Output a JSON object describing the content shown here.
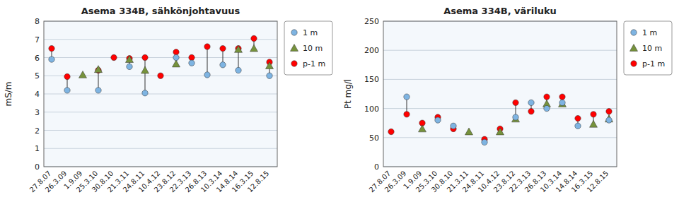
{
  "chart_data": [
    {
      "type": "scatter",
      "title": "Asema 334B, sähkönjohtavuus",
      "ylabel": "mS/m",
      "ylim": [
        0,
        8
      ],
      "yticks": [
        0,
        1,
        2,
        3,
        4,
        5,
        6,
        7,
        8
      ],
      "grid": true,
      "legend": "right",
      "categories": [
        "27.8.07",
        "26.3.09",
        "1.9.09",
        "25.3.10",
        "30.8.10",
        "21.3.11",
        "24.8.11",
        "10.4.12",
        "23.8.12",
        "22.3.13",
        "26.8.13",
        "10.3.14",
        "14.8.14",
        "16.3.15",
        "12.8.15"
      ],
      "series": [
        {
          "name": "1 m",
          "color": "#7EB4E2",
          "marker": "circle",
          "values": [
            5.9,
            4.2,
            null,
            4.2,
            null,
            5.5,
            4.05,
            null,
            6.0,
            5.7,
            5.05,
            5.6,
            5.3,
            null,
            5.0
          ]
        },
        {
          "name": "10 m",
          "color": "#76923C",
          "marker": "triangle",
          "values": [
            null,
            null,
            5.05,
            5.35,
            null,
            5.9,
            5.3,
            null,
            5.65,
            null,
            null,
            null,
            6.45,
            6.5,
            5.55
          ]
        },
        {
          "name": "p-1 m",
          "color": "#FF0000",
          "marker": "circle",
          "values": [
            6.5,
            4.95,
            null,
            5.3,
            6.0,
            5.95,
            6.0,
            5.0,
            6.3,
            6.0,
            6.6,
            6.5,
            6.5,
            7.05,
            5.75
          ]
        }
      ]
    },
    {
      "type": "scatter",
      "title": "Asema 334B, väriluku",
      "ylabel": "Pt mg/l",
      "ylim": [
        0,
        250
      ],
      "yticks": [
        0,
        50,
        100,
        150,
        200,
        250
      ],
      "grid": true,
      "legend": "right",
      "categories": [
        "27.8.07",
        "26.3.09",
        "1.9.09",
        "25.3.10",
        "30.8.10",
        "21.3.11",
        "24.8.11",
        "10.4.12",
        "23.8.12",
        "22.3.13",
        "26.8.13",
        "10.3.14",
        "14.8.14",
        "16.3.15",
        "12.8.15"
      ],
      "series": [
        {
          "name": "1 m",
          "color": "#7EB4E2",
          "marker": "circle",
          "values": [
            null,
            120,
            null,
            80,
            70,
            null,
            42,
            null,
            85,
            110,
            100,
            110,
            70,
            null,
            80
          ]
        },
        {
          "name": "10 m",
          "color": "#76923C",
          "marker": "triangle",
          "values": [
            null,
            null,
            65,
            null,
            null,
            60,
            null,
            60,
            82,
            null,
            108,
            108,
            null,
            73,
            82
          ]
        },
        {
          "name": "p-1 m",
          "color": "#FF0000",
          "marker": "circle",
          "values": [
            60,
            90,
            75,
            85,
            65,
            null,
            47,
            65,
            110,
            95,
            120,
            120,
            83,
            90,
            95
          ]
        }
      ]
    }
  ]
}
